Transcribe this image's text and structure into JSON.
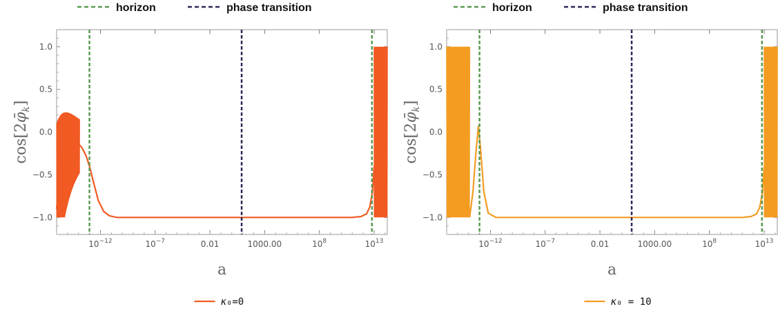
{
  "legend_top": [
    {
      "label": "horizon",
      "color": "#5a9a52"
    },
    {
      "label": "phase transition",
      "color": "#2e2758"
    }
  ],
  "chart_data": [
    {
      "type": "line",
      "xscale": "log",
      "xlabel": "a",
      "ylabel": "cos[2φ̄_k]",
      "ylim": [
        -1.2,
        1.2
      ],
      "yticks": [
        "1.0",
        "0.5",
        "0.0",
        "-0.5",
        "-1.0"
      ],
      "xticks": [
        "10^-12",
        "10^-7",
        "0.01",
        "1000.00",
        "10^8",
        "10^13"
      ],
      "series": [
        {
          "name": "κ₀=0",
          "color": "#f15a22"
        }
      ],
      "legend_label_greek": "κ",
      "legend_label_rest": "₀=0",
      "horizon_x": [
        "10^-13",
        "10^12.8"
      ],
      "phase_transition_x": "10^0.9",
      "curve": [
        [
          -16.0,
          -0.9
        ],
        [
          -15.8,
          -0.6
        ],
        [
          -15.5,
          -0.35
        ],
        [
          -15.0,
          -0.22
        ],
        [
          -14.5,
          -0.16
        ],
        [
          -14.0,
          -0.14
        ],
        [
          -13.7,
          -0.18
        ],
        [
          -13.3,
          -0.28
        ],
        [
          -13.0,
          -0.4
        ],
        [
          -12.6,
          -0.6
        ],
        [
          -12.2,
          -0.8
        ],
        [
          -11.7,
          -0.93
        ],
        [
          -11.2,
          -0.98
        ],
        [
          -10.5,
          -1.0
        ],
        [
          11.0,
          -1.0
        ],
        [
          11.8,
          -0.99
        ],
        [
          12.3,
          -0.96
        ],
        [
          12.6,
          -0.88
        ],
        [
          12.85,
          -0.7
        ],
        [
          13.0,
          -0.4
        ]
      ]
    },
    {
      "type": "line",
      "xscale": "log",
      "xlabel": "a",
      "ylabel": "cos[2φ̄_k]",
      "ylim": [
        -1.2,
        1.2
      ],
      "yticks": [
        "1.0",
        "0.5",
        "0.0",
        "-0.5",
        "-1.0"
      ],
      "xticks": [
        "10^-12",
        "10^-7",
        "0.01",
        "1000.00",
        "10^8",
        "10^13"
      ],
      "series": [
        {
          "name": "κ₀ = 10",
          "color": "#f49c22"
        }
      ],
      "legend_label_greek": "κ",
      "legend_label_rest": "₀ = 10",
      "horizon_x": [
        "10^-13",
        "10^12.8"
      ],
      "phase_transition_x": "10^0.9",
      "curve": [
        [
          -13.9,
          -1.0
        ],
        [
          -13.6,
          -0.7
        ],
        [
          -13.3,
          -0.2
        ],
        [
          -13.1,
          0.07
        ],
        [
          -12.9,
          -0.2
        ],
        [
          -12.6,
          -0.7
        ],
        [
          -12.2,
          -0.95
        ],
        [
          -11.5,
          -1.0
        ],
        [
          11.0,
          -1.0
        ],
        [
          11.8,
          -0.99
        ],
        [
          12.3,
          -0.96
        ],
        [
          12.6,
          -0.88
        ],
        [
          12.85,
          -0.7
        ],
        [
          13.0,
          -0.4
        ]
      ]
    }
  ]
}
